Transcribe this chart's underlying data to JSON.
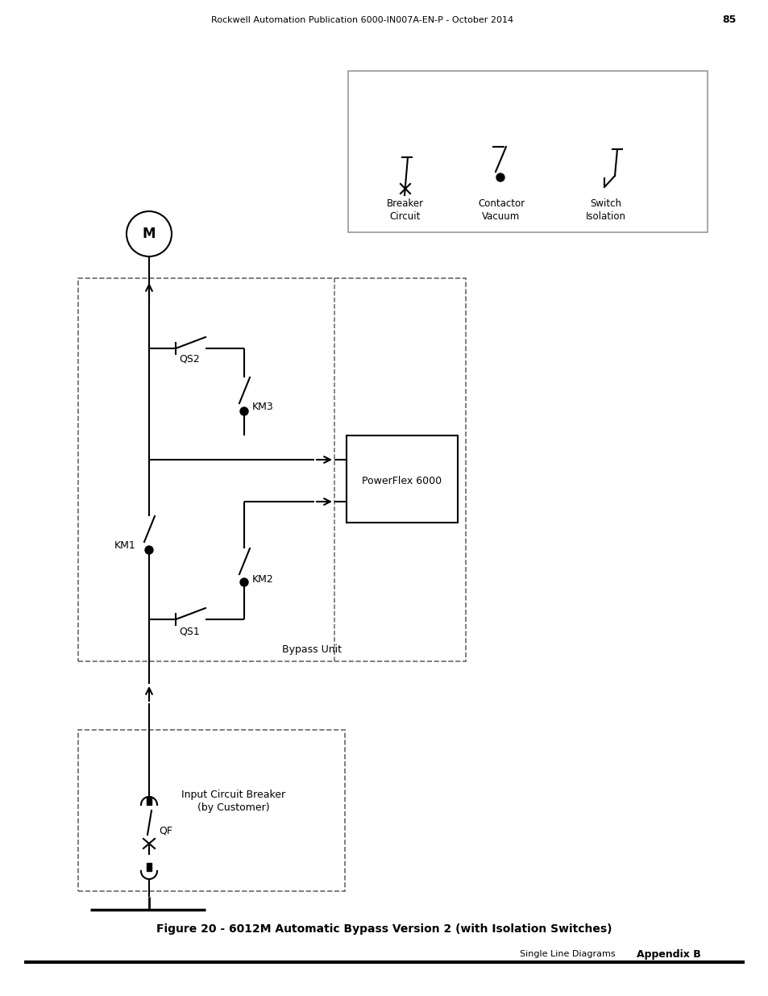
{
  "title": "Figure 20 - 6012M Automatic Bypass Version 2 (with Isolation Switches)",
  "header_section": "Single Line Diagrams",
  "header_appendix": "Appendix B",
  "footer": "Rockwell Automation Publication 6000-IN007A-EN-P - October 2014",
  "footer_page": "85",
  "bg_color": "#ffffff",
  "line_color": "#000000"
}
